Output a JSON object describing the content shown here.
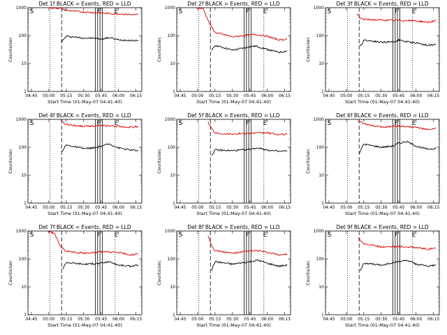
{
  "chart_data": [
    {
      "type": "line",
      "title": "Det 1f BLACK = Events, RED = LLD",
      "xlabel": "Start Time (01-May-07 04:41:40)",
      "ylabel": "Counts/sec",
      "ylim": [
        1,
        1000
      ],
      "y_scale": "log",
      "y_ticks": [
        "1",
        "10",
        "100",
        "1000"
      ],
      "x_ticks": [
        "04:45",
        "05:00",
        "05:15",
        "05:30",
        "05:45",
        "06:00",
        "06:15"
      ],
      "markers": [
        "S",
        "F",
        "E"
      ],
      "series": [
        {
          "color": "#000000",
          "x": [
            "05:11",
            "05:15",
            "05:30",
            "05:40",
            "05:45",
            "05:52",
            "06:00",
            "06:10",
            "06:17"
          ],
          "values": [
            60,
            95,
            82,
            80,
            75,
            85,
            70,
            68,
            65
          ]
        },
        {
          "color": "#dd0000",
          "x": [
            "04:59",
            "05:10",
            "05:15",
            "05:30",
            "05:45",
            "06:00",
            "06:10",
            "06:17"
          ],
          "values": [
            1000,
            950,
            800,
            700,
            640,
            600,
            570,
            560
          ]
        }
      ]
    },
    {
      "type": "line",
      "title": "Det 2f BLACK = Events, RED = LLD",
      "xlabel": "Start Time (01-May-07 04:41:40)",
      "ylabel": "Counts/sec",
      "ylim": [
        1,
        1000
      ],
      "y_scale": "log",
      "y_ticks": [
        "1",
        "10",
        "100",
        "1000"
      ],
      "x_ticks": [
        "04:45",
        "05:00",
        "05:15",
        "05:30",
        "05:45",
        "06:00",
        "06:15"
      ],
      "markers": [
        "S",
        "F",
        "E"
      ],
      "series": [
        {
          "color": "#000000",
          "x": [
            "05:12",
            "05:15",
            "05:30",
            "05:40",
            "05:45",
            "05:50",
            "06:00",
            "06:10",
            "06:17"
          ],
          "values": [
            28,
            45,
            30,
            36,
            40,
            42,
            32,
            25,
            28
          ]
        },
        {
          "color": "#dd0000",
          "x": [
            "04:59",
            "05:05",
            "05:10",
            "05:15",
            "05:30",
            "05:45",
            "05:50",
            "06:00",
            "06:10",
            "06:17"
          ],
          "values": [
            1000,
            900,
            280,
            130,
            90,
            105,
            110,
            95,
            70,
            75
          ]
        }
      ]
    },
    {
      "type": "line",
      "title": "Det 3f BLACK = Events, RED = LLD",
      "xlabel": "Start Time (01-May-07 04:41:40)",
      "ylabel": "Counts/sec",
      "ylim": [
        1,
        1000
      ],
      "y_scale": "log",
      "y_ticks": [
        "1",
        "10",
        "100",
        "1000"
      ],
      "x_ticks": [
        "04:45",
        "05:00",
        "05:15",
        "05:30",
        "05:45",
        "06:00",
        "06:15"
      ],
      "markers": [
        "S",
        "F",
        "E"
      ],
      "series": [
        {
          "color": "#000000",
          "x": [
            "05:12",
            "05:15",
            "05:30",
            "05:42",
            "05:45",
            "05:52",
            "06:00",
            "06:10",
            "06:17"
          ],
          "values": [
            40,
            70,
            58,
            60,
            70,
            60,
            55,
            45,
            48
          ]
        },
        {
          "color": "#dd0000",
          "x": [
            "05:09",
            "05:12",
            "05:15",
            "05:30",
            "05:45",
            "06:00",
            "06:10",
            "06:17"
          ],
          "values": [
            600,
            420,
            380,
            360,
            350,
            340,
            300,
            340
          ]
        }
      ]
    },
    {
      "type": "line",
      "title": "Det 4f BLACK = Events, RED = LLD",
      "xlabel": "Start Time (01-May-07 04:41:40)",
      "ylabel": "Counts/sec",
      "ylim": [
        1,
        1000
      ],
      "y_scale": "log",
      "y_ticks": [
        "1",
        "10",
        "100",
        "1000"
      ],
      "x_ticks": [
        "04:45",
        "05:00",
        "05:15",
        "05:30",
        "05:45",
        "06:00",
        "06:15"
      ],
      "markers": [
        "S",
        "F",
        "E"
      ],
      "series": [
        {
          "color": "#000000",
          "x": [
            "05:11",
            "05:15",
            "05:30",
            "05:40",
            "05:45",
            "05:52",
            "06:00",
            "06:10",
            "06:17"
          ],
          "values": [
            70,
            120,
            90,
            95,
            110,
            130,
            95,
            80,
            75
          ]
        },
        {
          "color": "#dd0000",
          "x": [
            "05:10",
            "05:15",
            "05:30",
            "05:45",
            "06:00",
            "06:10",
            "06:17"
          ],
          "values": [
            900,
            650,
            560,
            600,
            560,
            520,
            560
          ]
        }
      ]
    },
    {
      "type": "line",
      "title": "Det 5f BLACK = Events, RED = LLD",
      "xlabel": "Start Time (01-May-07 04:41:40)",
      "ylabel": "Counts/sec",
      "ylim": [
        1,
        1000
      ],
      "y_scale": "log",
      "y_ticks": [
        "1",
        "10",
        "100",
        "1000"
      ],
      "x_ticks": [
        "04:45",
        "05:00",
        "05:15",
        "05:30",
        "05:45",
        "06:00",
        "06:15"
      ],
      "markers": [
        "S",
        "F",
        "E"
      ],
      "series": [
        {
          "color": "#000000",
          "x": [
            "05:12",
            "05:15",
            "05:30",
            "05:45",
            "05:52",
            "06:00",
            "06:10",
            "06:17"
          ],
          "values": [
            50,
            80,
            75,
            85,
            95,
            80,
            70,
            75
          ]
        },
        {
          "color": "#dd0000",
          "x": [
            "05:09",
            "05:12",
            "05:15",
            "05:30",
            "05:45",
            "06:00",
            "06:10",
            "06:17"
          ],
          "values": [
            800,
            480,
            320,
            300,
            320,
            330,
            280,
            300
          ]
        }
      ]
    },
    {
      "type": "line",
      "title": "Det 6f BLACK = Events, RED = LLD",
      "xlabel": "Start Time (01-May-07 04:41:40)",
      "ylabel": "Counts/sec",
      "ylim": [
        1,
        1000
      ],
      "y_scale": "log",
      "y_ticks": [
        "1",
        "10",
        "100",
        "1000"
      ],
      "x_ticks": [
        "04:45",
        "05:00",
        "05:15",
        "05:30",
        "05:45",
        "06:00",
        "06:15"
      ],
      "markers": [
        "S",
        "F",
        "E"
      ],
      "series": [
        {
          "color": "#000000",
          "x": [
            "05:11",
            "05:15",
            "05:30",
            "05:40",
            "05:45",
            "05:52",
            "06:00",
            "06:10",
            "06:17"
          ],
          "values": [
            60,
            130,
            100,
            110,
            140,
            160,
            110,
            85,
            90
          ]
        },
        {
          "color": "#dd0000",
          "x": [
            "05:10",
            "05:15",
            "05:30",
            "05:45",
            "06:00",
            "06:10",
            "06:17"
          ],
          "values": [
            900,
            700,
            520,
            580,
            520,
            420,
            480
          ]
        }
      ]
    },
    {
      "type": "line",
      "title": "Det 7f BLACK = Events, RED = LLD",
      "xlabel": "Start Time (01-May-07 04:41:40)",
      "ylabel": "Counts/sec",
      "ylim": [
        1,
        1000
      ],
      "y_scale": "log",
      "y_ticks": [
        "1",
        "10",
        "100",
        "1000"
      ],
      "x_ticks": [
        "04:45",
        "05:00",
        "05:15",
        "05:30",
        "05:45",
        "06:00",
        "06:15"
      ],
      "markers": [
        "S",
        "F",
        "E"
      ],
      "series": [
        {
          "color": "#000000",
          "x": [
            "05:12",
            "05:15",
            "05:30",
            "05:45",
            "05:52",
            "06:00",
            "06:10",
            "06:17"
          ],
          "values": [
            45,
            75,
            65,
            70,
            80,
            60,
            55,
            60
          ]
        },
        {
          "color": "#dd0000",
          "x": [
            "04:59",
            "05:05",
            "05:10",
            "05:15",
            "05:30",
            "05:45",
            "06:00",
            "06:10",
            "06:17"
          ],
          "values": [
            1000,
            800,
            280,
            190,
            160,
            180,
            170,
            140,
            150
          ]
        }
      ]
    },
    {
      "type": "line",
      "title": "Det 8f BLACK = Events, RED = LLD",
      "xlabel": "Start Time (01-May-07 04:41:40)",
      "ylabel": "Counts/sec",
      "ylim": [
        1,
        1000
      ],
      "y_scale": "log",
      "y_ticks": [
        "1",
        "10",
        "100",
        "1000"
      ],
      "x_ticks": [
        "04:45",
        "05:00",
        "05:15",
        "05:30",
        "05:45",
        "06:00",
        "06:15"
      ],
      "markers": [
        "S",
        "F",
        "E"
      ],
      "series": [
        {
          "color": "#000000",
          "x": [
            "05:12",
            "05:15",
            "05:30",
            "05:45",
            "05:52",
            "06:00",
            "06:10",
            "06:17"
          ],
          "values": [
            40,
            80,
            65,
            80,
            90,
            70,
            55,
            60
          ]
        },
        {
          "color": "#dd0000",
          "x": [
            "05:09",
            "05:12",
            "05:15",
            "05:30",
            "05:45",
            "05:52",
            "06:00",
            "06:10",
            "06:17"
          ],
          "values": [
            700,
            300,
            200,
            160,
            190,
            200,
            170,
            140,
            150
          ]
        }
      ]
    },
    {
      "type": "line",
      "title": "Det 9f BLACK = Events, RED = LLD",
      "xlabel": "Start Time (01-May-07 04:41:40)",
      "ylabel": "Counts/sec",
      "ylim": [
        1,
        1000
      ],
      "y_scale": "log",
      "y_ticks": [
        "1",
        "10",
        "100",
        "1000"
      ],
      "x_ticks": [
        "04:45",
        "05:00",
        "05:15",
        "05:30",
        "05:45",
        "06:00",
        "06:15"
      ],
      "markers": [
        "S",
        "F",
        "E"
      ],
      "series": [
        {
          "color": "#000000",
          "x": [
            "05:12",
            "05:15",
            "05:30",
            "05:45",
            "05:52",
            "06:00",
            "06:10",
            "06:17"
          ],
          "values": [
            40,
            70,
            60,
            80,
            90,
            65,
            55,
            60
          ]
        },
        {
          "color": "#dd0000",
          "x": [
            "05:10",
            "05:15",
            "05:30",
            "05:45",
            "06:00",
            "06:10",
            "06:17"
          ],
          "values": [
            600,
            350,
            270,
            280,
            260,
            220,
            240
          ]
        }
      ]
    }
  ],
  "colors": {
    "events": "#000000",
    "lld": "#dd0000"
  }
}
